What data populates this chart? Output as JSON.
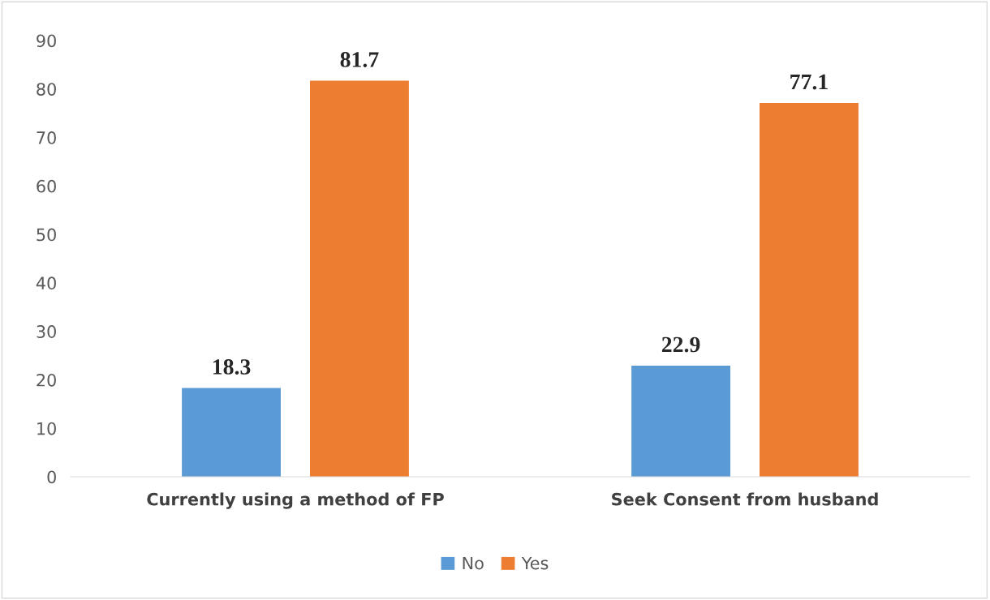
{
  "chart_data": {
    "type": "bar",
    "categories": [
      "Currently using a method of FP",
      "Seek Consent from husband"
    ],
    "series": [
      {
        "name": "No",
        "color": "#5b9bd5",
        "values": [
          18.3,
          22.9
        ]
      },
      {
        "name": "Yes",
        "color": "#ed7d31",
        "values": [
          81.7,
          77.1
        ]
      }
    ],
    "ylim": [
      0,
      90
    ],
    "yticks": [
      0,
      10,
      20,
      30,
      40,
      50,
      60,
      70,
      80,
      90
    ],
    "grid": false,
    "legend": "bottom",
    "data_labels": true
  }
}
